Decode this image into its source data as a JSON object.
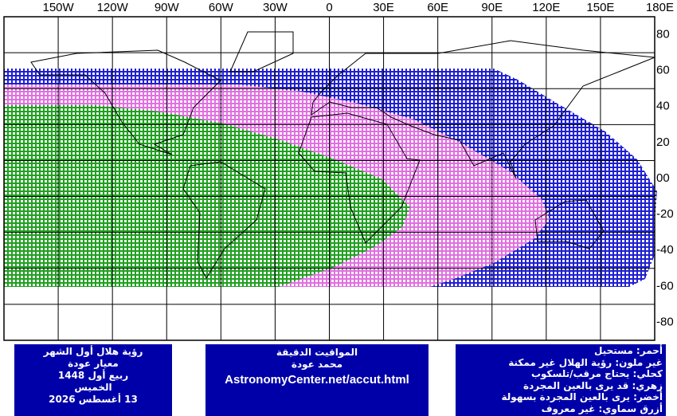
{
  "map": {
    "lon_labels": [
      "150W",
      "120W",
      "90W",
      "60W",
      "30W",
      "0",
      "30E",
      "60E",
      "90E",
      "120E",
      "150E",
      "180E"
    ],
    "lat_labels": [
      "80",
      "60",
      "40",
      "20",
      "00",
      "-20",
      "-40",
      "-60",
      "-80"
    ]
  },
  "info_left": [
    "رؤية هلال أول الشهر",
    "معيار عودة",
    "ربيع أول 1448",
    "الخميس",
    "13 أغسطس 2026"
  ],
  "info_middle": [
    "المواقيت الدقيقة",
    "محمد عودة",
    "AstronomyCenter.net/accut.html"
  ],
  "legend": [
    "أحمر: مستحيل",
    "غير ملون: رؤية الهلال غير ممكنة",
    "كحلي: يحتاج مرقب/تلسكوب",
    "زهري: قد يرى بالعين المجردة",
    "أخضر: يرى بالعين المجردة بسهولة",
    "أزرق سماوي: غير معروف"
  ]
}
